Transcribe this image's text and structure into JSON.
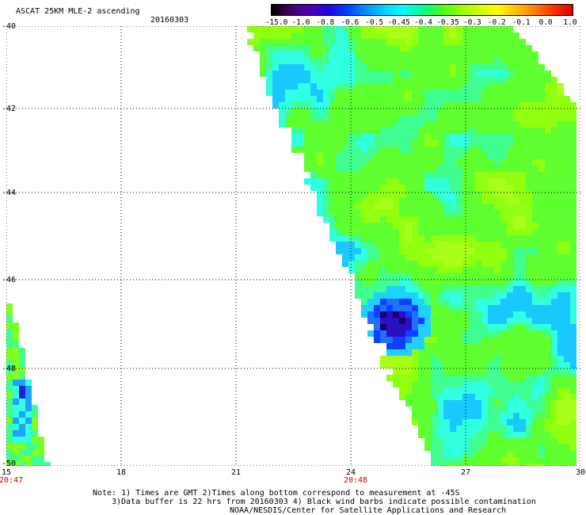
{
  "header": {
    "title": "ASCAT 25KM MLE-2 ascending",
    "date": "20160303"
  },
  "colorbar": {
    "labels": [
      "-15.0",
      "-1.0",
      "-0.8",
      "-0.6",
      "-0.5",
      "-0.45",
      "-0.4",
      "-0.35",
      "-0.3",
      "-0.2",
      "-0.1",
      "0.0",
      "1.0"
    ],
    "colors": [
      "#000000",
      "#400060",
      "#5000b0",
      "#2000e0",
      "#0040ff",
      "#0090ff",
      "#00d0ff",
      "#00ffff",
      "#00ff90",
      "#40ff20",
      "#90ff00",
      "#d0ff00",
      "#ffff00",
      "#ffc000",
      "#ff8000",
      "#ff3000",
      "#e00000"
    ]
  },
  "axes": {
    "y_ticks": [
      "-40",
      "-42",
      "-44",
      "-46",
      "-48",
      "-50"
    ],
    "x_ticks": [
      "15",
      "18",
      "21",
      "24",
      "27",
      "30"
    ],
    "time_labels": [
      {
        "x": "15",
        "text": "20:47"
      },
      {
        "x": "24",
        "text": "20:48"
      }
    ],
    "xlim": [
      15,
      30
    ],
    "ylim": [
      -50,
      -40
    ]
  },
  "notes": [
    "Note: 1) Times are GMT 2)Times along bottom correspond to measurement at -45S",
    "3)Data buffer is 22 hrs from 20160303 4) Black wind barbs indicate possible contamination",
    "NOAA/NESDIS/Center for Satellite Applications and Research"
  ],
  "chart_data": {
    "type": "heatmap",
    "title": "ASCAT 25KM MLE-2 ascending",
    "swaths": [
      {
        "lon_top": 21.3,
        "lon_right": 30,
        "lat_range": [
          -40,
          -50
        ],
        "dominant_value": "-0.35 to -0.3"
      },
      {
        "lon_left": 15,
        "lat_range": [
          -46.5,
          -50
        ],
        "dominant_value": "-0.4 to -0.3"
      }
    ],
    "low_value_patch": {
      "lon": 24.7,
      "lat": -47.0,
      "value": "-15.0 to -0.8"
    }
  }
}
